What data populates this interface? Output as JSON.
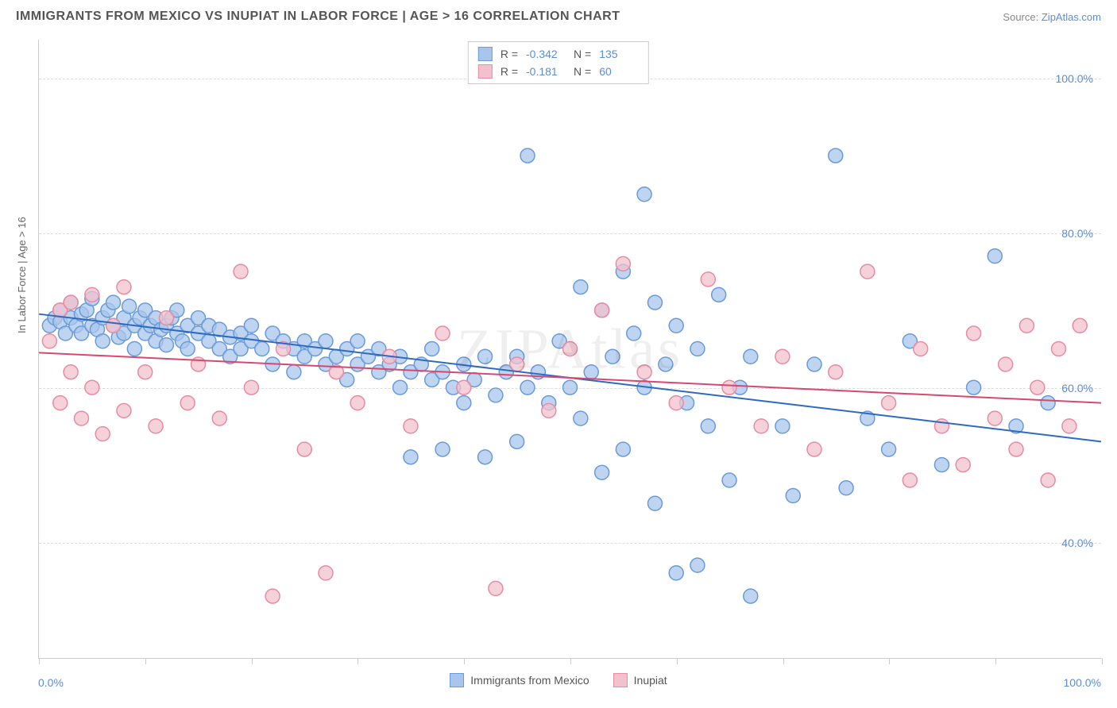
{
  "title": "IMMIGRANTS FROM MEXICO VS INUPIAT IN LABOR FORCE | AGE > 16 CORRELATION CHART",
  "source_label": "Source:",
  "source_name": "ZipAtlas.com",
  "watermark": "ZIPAtlas",
  "y_axis_label": "In Labor Force | Age > 16",
  "chart": {
    "type": "scatter-with-regression",
    "background_color": "#ffffff",
    "grid_color": "#dddddd",
    "axis_color": "#cccccc",
    "tick_label_color": "#5b8dd6",
    "xlim": [
      0,
      100
    ],
    "ylim": [
      25,
      105
    ],
    "x_tick_positions": [
      0,
      10,
      20,
      30,
      40,
      50,
      60,
      70,
      80,
      90,
      100
    ],
    "y_gridlines": [
      40,
      60,
      80,
      100
    ],
    "y_tick_labels": [
      "40.0%",
      "60.0%",
      "80.0%",
      "100.0%"
    ],
    "x_min_label": "0.0%",
    "x_max_label": "100.0%",
    "series": [
      {
        "name": "Immigrants from Mexico",
        "marker_fill": "#a8c5eb",
        "marker_stroke": "#6a9bd8",
        "marker_opacity": 0.75,
        "marker_radius": 9,
        "line_color": "#2e6bc0",
        "line_width": 2,
        "R": "-0.342",
        "N": "135",
        "regression": {
          "x1": 0,
          "y1": 69.5,
          "x2": 100,
          "y2": 53.0
        },
        "points": [
          [
            1,
            68
          ],
          [
            1.5,
            69
          ],
          [
            2,
            68.5
          ],
          [
            2,
            70
          ],
          [
            2.5,
            67
          ],
          [
            3,
            69
          ],
          [
            3,
            71
          ],
          [
            3.5,
            68
          ],
          [
            4,
            69.5
          ],
          [
            4,
            67
          ],
          [
            4.5,
            70
          ],
          [
            5,
            68
          ],
          [
            5,
            71.5
          ],
          [
            5.5,
            67.5
          ],
          [
            6,
            69
          ],
          [
            6,
            66
          ],
          [
            6.5,
            70
          ],
          [
            7,
            68
          ],
          [
            7,
            71
          ],
          [
            7.5,
            66.5
          ],
          [
            8,
            69
          ],
          [
            8,
            67
          ],
          [
            8.5,
            70.5
          ],
          [
            9,
            68
          ],
          [
            9,
            65
          ],
          [
            9.5,
            69
          ],
          [
            10,
            67
          ],
          [
            10,
            70
          ],
          [
            10.5,
            68
          ],
          [
            11,
            66
          ],
          [
            11,
            69
          ],
          [
            11.5,
            67.5
          ],
          [
            12,
            68
          ],
          [
            12,
            65.5
          ],
          [
            12.5,
            69
          ],
          [
            13,
            67
          ],
          [
            13,
            70
          ],
          [
            13.5,
            66
          ],
          [
            14,
            68
          ],
          [
            14,
            65
          ],
          [
            15,
            67
          ],
          [
            15,
            69
          ],
          [
            16,
            66
          ],
          [
            16,
            68
          ],
          [
            17,
            65
          ],
          [
            17,
            67.5
          ],
          [
            18,
            66.5
          ],
          [
            18,
            64
          ],
          [
            19,
            67
          ],
          [
            19,
            65
          ],
          [
            20,
            66
          ],
          [
            20,
            68
          ],
          [
            21,
            65
          ],
          [
            22,
            67
          ],
          [
            22,
            63
          ],
          [
            23,
            66
          ],
          [
            24,
            65
          ],
          [
            24,
            62
          ],
          [
            25,
            66
          ],
          [
            25,
            64
          ],
          [
            26,
            65
          ],
          [
            27,
            63
          ],
          [
            27,
            66
          ],
          [
            28,
            64
          ],
          [
            29,
            61
          ],
          [
            29,
            65
          ],
          [
            30,
            63
          ],
          [
            30,
            66
          ],
          [
            31,
            64
          ],
          [
            32,
            62
          ],
          [
            32,
            65
          ],
          [
            33,
            63
          ],
          [
            34,
            60
          ],
          [
            34,
            64
          ],
          [
            35,
            62
          ],
          [
            35,
            51
          ],
          [
            36,
            63
          ],
          [
            37,
            61
          ],
          [
            37,
            65
          ],
          [
            38,
            52
          ],
          [
            38,
            62
          ],
          [
            39,
            60
          ],
          [
            40,
            63
          ],
          [
            40,
            58
          ],
          [
            41,
            61
          ],
          [
            42,
            51
          ],
          [
            42,
            64
          ],
          [
            43,
            59
          ],
          [
            44,
            62
          ],
          [
            45,
            53
          ],
          [
            45,
            64
          ],
          [
            46,
            90
          ],
          [
            46,
            60
          ],
          [
            47,
            62
          ],
          [
            48,
            58
          ],
          [
            49,
            66
          ],
          [
            50,
            60
          ],
          [
            51,
            73
          ],
          [
            51,
            56
          ],
          [
            52,
            62
          ],
          [
            53,
            70
          ],
          [
            53,
            49
          ],
          [
            54,
            64
          ],
          [
            55,
            75
          ],
          [
            55,
            52
          ],
          [
            56,
            67
          ],
          [
            57,
            85
          ],
          [
            57,
            60
          ],
          [
            58,
            71
          ],
          [
            58,
            45
          ],
          [
            59,
            63
          ],
          [
            60,
            68
          ],
          [
            60,
            36
          ],
          [
            61,
            58
          ],
          [
            62,
            65
          ],
          [
            62,
            37
          ],
          [
            63,
            55
          ],
          [
            64,
            72
          ],
          [
            65,
            48
          ],
          [
            66,
            60
          ],
          [
            67,
            33
          ],
          [
            67,
            64
          ],
          [
            70,
            55
          ],
          [
            71,
            46
          ],
          [
            73,
            63
          ],
          [
            75,
            90
          ],
          [
            76,
            47
          ],
          [
            78,
            56
          ],
          [
            80,
            52
          ],
          [
            82,
            66
          ],
          [
            85,
            50
          ],
          [
            88,
            60
          ],
          [
            90,
            77
          ],
          [
            92,
            55
          ],
          [
            95,
            58
          ]
        ]
      },
      {
        "name": "Inupiat",
        "marker_fill": "#f2c1cd",
        "marker_stroke": "#e88ba3",
        "marker_opacity": 0.75,
        "marker_radius": 9,
        "line_color": "#d6486f",
        "line_width": 2,
        "R": "-0.181",
        "N": "60",
        "regression": {
          "x1": 0,
          "y1": 64.5,
          "x2": 100,
          "y2": 58.0
        },
        "points": [
          [
            1,
            66
          ],
          [
            2,
            70
          ],
          [
            2,
            58
          ],
          [
            3,
            62
          ],
          [
            3,
            71
          ],
          [
            4,
            56
          ],
          [
            5,
            72
          ],
          [
            5,
            60
          ],
          [
            6,
            54
          ],
          [
            7,
            68
          ],
          [
            8,
            73
          ],
          [
            8,
            57
          ],
          [
            10,
            62
          ],
          [
            11,
            55
          ],
          [
            12,
            69
          ],
          [
            14,
            58
          ],
          [
            15,
            63
          ],
          [
            17,
            56
          ],
          [
            19,
            75
          ],
          [
            20,
            60
          ],
          [
            22,
            33
          ],
          [
            23,
            65
          ],
          [
            25,
            52
          ],
          [
            27,
            36
          ],
          [
            28,
            62
          ],
          [
            30,
            58
          ],
          [
            33,
            64
          ],
          [
            35,
            55
          ],
          [
            38,
            67
          ],
          [
            40,
            60
          ],
          [
            43,
            34
          ],
          [
            45,
            63
          ],
          [
            48,
            57
          ],
          [
            50,
            65
          ],
          [
            53,
            70
          ],
          [
            55,
            76
          ],
          [
            57,
            62
          ],
          [
            60,
            58
          ],
          [
            63,
            74
          ],
          [
            65,
            60
          ],
          [
            68,
            55
          ],
          [
            70,
            64
          ],
          [
            73,
            52
          ],
          [
            75,
            62
          ],
          [
            78,
            75
          ],
          [
            80,
            58
          ],
          [
            82,
            48
          ],
          [
            83,
            65
          ],
          [
            85,
            55
          ],
          [
            87,
            50
          ],
          [
            88,
            67
          ],
          [
            90,
            56
          ],
          [
            91,
            63
          ],
          [
            92,
            52
          ],
          [
            93,
            68
          ],
          [
            94,
            60
          ],
          [
            95,
            48
          ],
          [
            96,
            65
          ],
          [
            97,
            55
          ],
          [
            98,
            68
          ]
        ]
      }
    ]
  },
  "legend": {
    "series1_label": "Immigrants from Mexico",
    "series2_label": "Inupiat"
  },
  "stats_labels": {
    "R": "R =",
    "N": "N ="
  }
}
